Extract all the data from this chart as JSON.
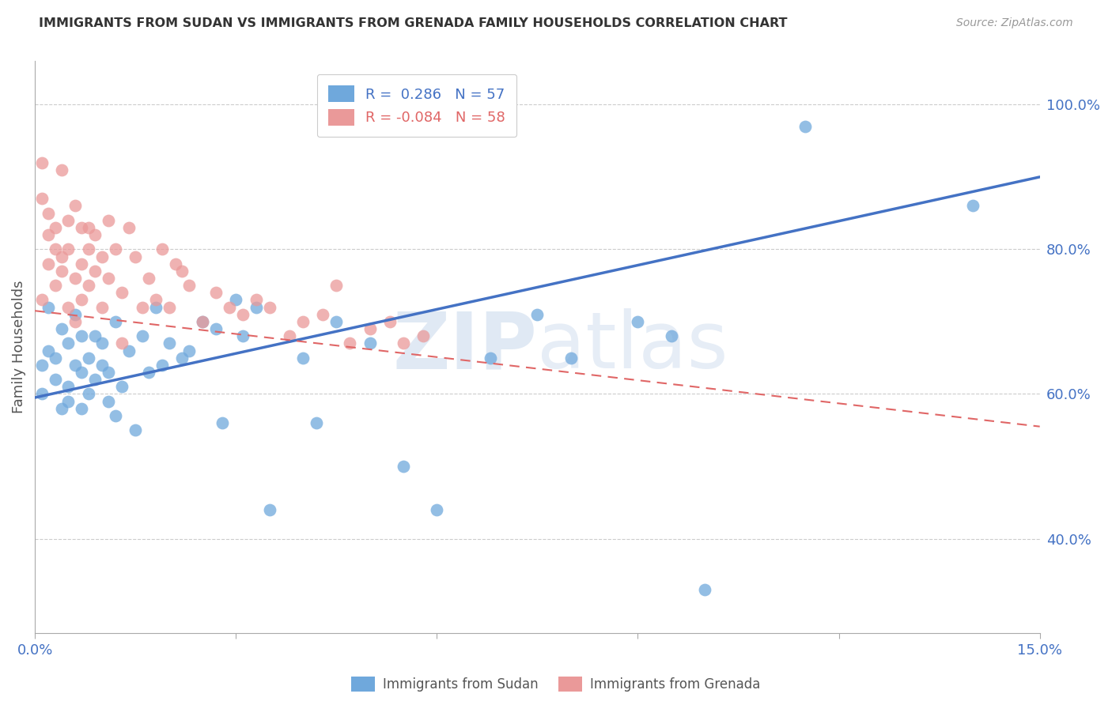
{
  "title": "IMMIGRANTS FROM SUDAN VS IMMIGRANTS FROM GRENADA FAMILY HOUSEHOLDS CORRELATION CHART",
  "source": "Source: ZipAtlas.com",
  "ylabel": "Family Households",
  "legend_sudan": "Immigrants from Sudan",
  "legend_grenada": "Immigrants from Grenada",
  "R_sudan": 0.286,
  "N_sudan": 57,
  "R_grenada": -0.084,
  "N_grenada": 58,
  "xlim": [
    0.0,
    0.15
  ],
  "ylim": [
    0.27,
    1.06
  ],
  "yticks_right": [
    0.4,
    0.6,
    0.8,
    1.0
  ],
  "ytick_labels_right": [
    "40.0%",
    "60.0%",
    "80.0%",
    "100.0%"
  ],
  "color_sudan": "#6fa8dc",
  "color_grenada": "#ea9999",
  "color_trendline_sudan": "#4472c4",
  "color_trendline_grenada": "#e06666",
  "watermark": "ZIPatlas",
  "sudan_x": [
    0.001,
    0.001,
    0.002,
    0.002,
    0.003,
    0.003,
    0.004,
    0.004,
    0.005,
    0.005,
    0.005,
    0.006,
    0.006,
    0.007,
    0.007,
    0.007,
    0.008,
    0.008,
    0.009,
    0.009,
    0.01,
    0.01,
    0.011,
    0.011,
    0.012,
    0.012,
    0.013,
    0.014,
    0.015,
    0.016,
    0.017,
    0.018,
    0.019,
    0.02,
    0.022,
    0.023,
    0.025,
    0.027,
    0.028,
    0.03,
    0.031,
    0.033,
    0.035,
    0.04,
    0.042,
    0.045,
    0.05,
    0.055,
    0.06,
    0.068,
    0.075,
    0.08,
    0.09,
    0.095,
    0.1,
    0.115,
    0.14
  ],
  "sudan_y": [
    0.6,
    0.64,
    0.66,
    0.72,
    0.65,
    0.62,
    0.58,
    0.69,
    0.67,
    0.61,
    0.59,
    0.64,
    0.71,
    0.68,
    0.63,
    0.58,
    0.65,
    0.6,
    0.68,
    0.62,
    0.64,
    0.67,
    0.59,
    0.63,
    0.7,
    0.57,
    0.61,
    0.66,
    0.55,
    0.68,
    0.63,
    0.72,
    0.64,
    0.67,
    0.65,
    0.66,
    0.7,
    0.69,
    0.56,
    0.73,
    0.68,
    0.72,
    0.44,
    0.65,
    0.56,
    0.7,
    0.67,
    0.5,
    0.44,
    0.65,
    0.71,
    0.65,
    0.7,
    0.68,
    0.33,
    0.97,
    0.86
  ],
  "grenada_x": [
    0.001,
    0.001,
    0.001,
    0.002,
    0.002,
    0.002,
    0.003,
    0.003,
    0.003,
    0.004,
    0.004,
    0.004,
    0.005,
    0.005,
    0.005,
    0.006,
    0.006,
    0.006,
    0.007,
    0.007,
    0.007,
    0.008,
    0.008,
    0.008,
    0.009,
    0.009,
    0.01,
    0.01,
    0.011,
    0.011,
    0.012,
    0.013,
    0.013,
    0.014,
    0.015,
    0.016,
    0.017,
    0.018,
    0.019,
    0.02,
    0.021,
    0.022,
    0.023,
    0.025,
    0.027,
    0.029,
    0.031,
    0.033,
    0.035,
    0.038,
    0.04,
    0.043,
    0.045,
    0.047,
    0.05,
    0.053,
    0.055,
    0.058
  ],
  "grenada_y": [
    0.92,
    0.73,
    0.87,
    0.82,
    0.78,
    0.85,
    0.75,
    0.8,
    0.83,
    0.77,
    0.91,
    0.79,
    0.84,
    0.72,
    0.8,
    0.76,
    0.86,
    0.7,
    0.83,
    0.78,
    0.73,
    0.8,
    0.75,
    0.83,
    0.77,
    0.82,
    0.72,
    0.79,
    0.76,
    0.84,
    0.8,
    0.67,
    0.74,
    0.83,
    0.79,
    0.72,
    0.76,
    0.73,
    0.8,
    0.72,
    0.78,
    0.77,
    0.75,
    0.7,
    0.74,
    0.72,
    0.71,
    0.73,
    0.72,
    0.68,
    0.7,
    0.71,
    0.75,
    0.67,
    0.69,
    0.7,
    0.67,
    0.68
  ],
  "trendline_sudan_x0": 0.0,
  "trendline_sudan_y0": 0.595,
  "trendline_sudan_x1": 0.15,
  "trendline_sudan_y1": 0.9,
  "trendline_grenada_x0": 0.0,
  "trendline_grenada_y0": 0.715,
  "trendline_grenada_x1": 0.15,
  "trendline_grenada_y1": 0.555
}
